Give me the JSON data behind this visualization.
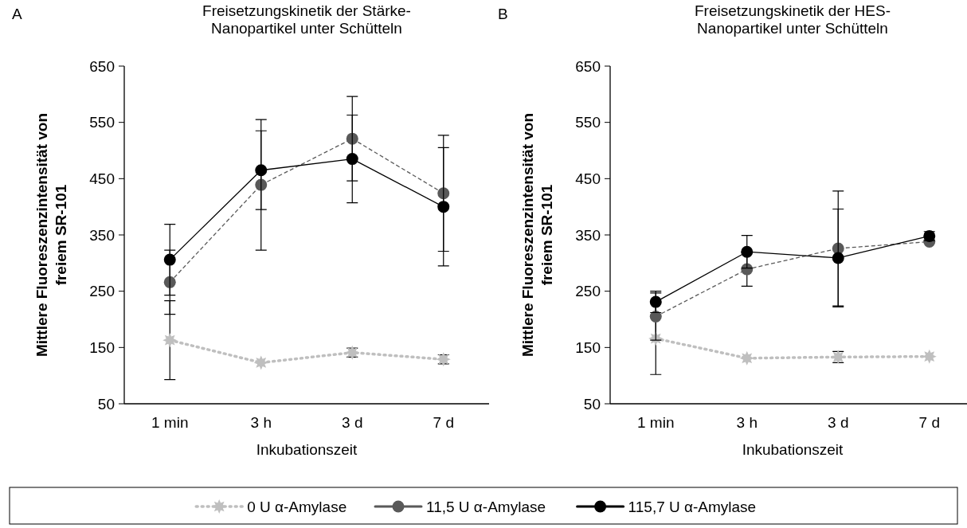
{
  "chart_data": [
    {
      "type": "line",
      "title": "Freisetzungskinetik der Stärke-\nNanopartikel unter Schütteln",
      "xlabel": "Inkubationszeit",
      "ylabel": "Mittlere Fluoreszenzintensität von\nfreiem SR-101",
      "annotations": [
        "A"
      ],
      "categories": [
        "1 min",
        "3 h",
        "3 d",
        "7 d"
      ],
      "ylim": [
        50,
        650
      ],
      "yticks": [
        50,
        150,
        250,
        350,
        450,
        550,
        650
      ],
      "grid": false,
      "legend": "bottom",
      "series": [
        {
          "name": "0 U α-Amylase",
          "color": "#bfbfbf",
          "marker": "star",
          "line_style": "dotted",
          "values": [
            163,
            123,
            141,
            129
          ],
          "errors": [
            70,
            null,
            8,
            8
          ]
        },
        {
          "name": "11,5 U α-Amylase",
          "color": "#595959",
          "marker": "circle",
          "line_style": "dashed",
          "values": [
            266,
            439,
            521,
            424
          ],
          "errors": [
            57,
            116,
            75,
            103
          ]
        },
        {
          "name": "115,7 U α-Amylase",
          "color": "#000000",
          "marker": "circle",
          "line_style": "solid",
          "values": [
            306,
            465,
            485,
            400
          ],
          "errors": [
            63,
            70,
            78,
            105
          ]
        }
      ]
    },
    {
      "type": "line",
      "title": "Freisetzungskinetik der HES-\nNanopartikel unter Schütteln",
      "xlabel": "Inkubationszeit",
      "ylabel": "Mittlere Fluoreszenzintensität von\nfreiem SR-101",
      "annotations": [
        "B"
      ],
      "categories": [
        "1 min",
        "3 h",
        "3 d",
        "7 d"
      ],
      "ylim": [
        50,
        650
      ],
      "yticks": [
        50,
        150,
        250,
        350,
        450,
        550,
        650
      ],
      "grid": false,
      "series": [
        {
          "color": "#bfbfbf",
          "marker": "star",
          "line_style": "dotted",
          "values": [
            166,
            131,
            133,
            134
          ],
          "errors": [
            64,
            null,
            10,
            null
          ]
        },
        {
          "color": "#595959",
          "marker": "circle",
          "line_style": "dashed",
          "values": [
            205,
            289,
            326,
            338
          ],
          "errors": [
            42,
            30,
            102,
            null
          ]
        },
        {
          "color": "#000000",
          "marker": "circle",
          "line_style": "solid",
          "values": [
            231,
            320,
            309,
            348
          ],
          "errors": [
            19,
            29,
            87,
            8
          ]
        }
      ]
    }
  ]
}
